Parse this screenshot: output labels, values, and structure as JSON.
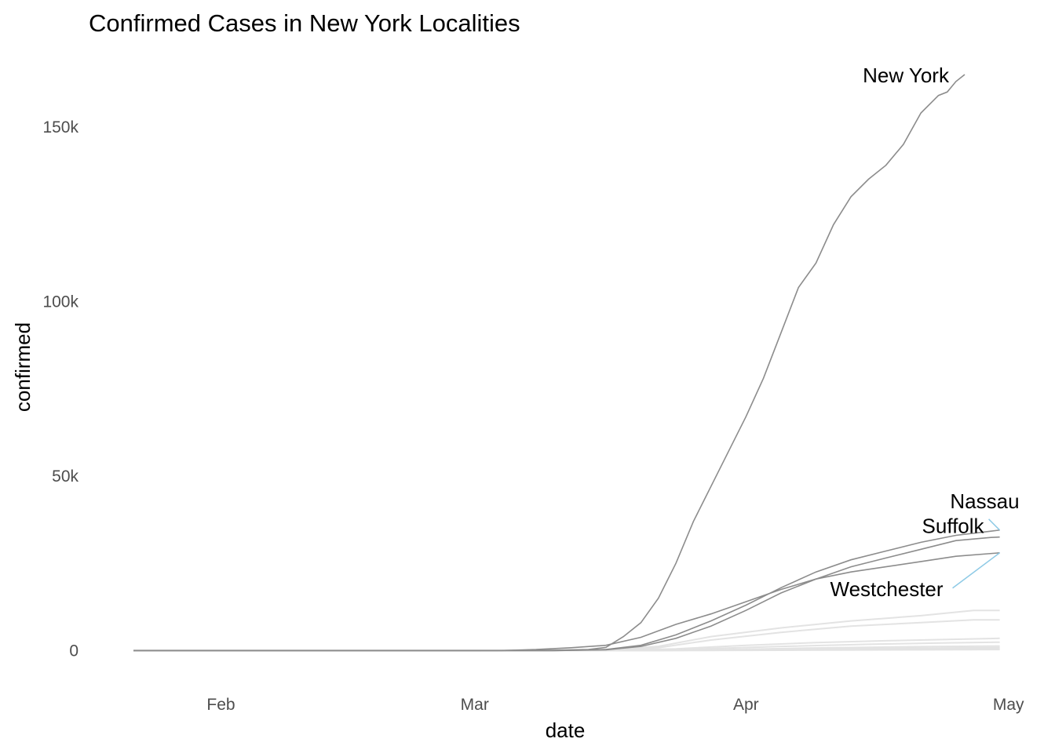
{
  "chart_data": {
    "type": "line",
    "title": "Confirmed Cases in New York Localities",
    "xlabel": "date",
    "ylabel": "confirmed",
    "grid": false,
    "legend": "none",
    "x_ticks": [
      "Feb",
      "Mar",
      "Apr",
      "May"
    ],
    "x_tick_dates": [
      "2020-02-01",
      "2020-03-01",
      "2020-04-01",
      "2020-05-01"
    ],
    "y_ticks": [
      "0",
      "50k",
      "100k",
      "150k"
    ],
    "y_tick_values": [
      0,
      50000,
      100000,
      150000
    ],
    "xlim": [
      "2020-01-22",
      "2020-05-03"
    ],
    "ylim": [
      -8000,
      165000
    ],
    "colors": {
      "highlight_line": "#8c8c8c",
      "minor_line": "#e3e3e3",
      "label_leader": "#8ecae6",
      "tick_text": "#4d4d4d"
    },
    "series": [
      {
        "name": "New York",
        "points": [
          [
            "2020-01-22",
            0
          ],
          [
            "2020-03-01",
            0
          ],
          [
            "2020-03-10",
            100
          ],
          [
            "2020-03-14",
            300
          ],
          [
            "2020-03-16",
            900
          ],
          [
            "2020-03-18",
            4000
          ],
          [
            "2020-03-20",
            8000
          ],
          [
            "2020-03-22",
            15000
          ],
          [
            "2020-03-24",
            25000
          ],
          [
            "2020-03-26",
            37000
          ],
          [
            "2020-03-28",
            47000
          ],
          [
            "2020-03-30",
            57000
          ],
          [
            "2020-04-01",
            67000
          ],
          [
            "2020-04-03",
            78000
          ],
          [
            "2020-04-05",
            91000
          ],
          [
            "2020-04-07",
            104000
          ],
          [
            "2020-04-09",
            111000
          ],
          [
            "2020-04-11",
            122000
          ],
          [
            "2020-04-13",
            130000
          ],
          [
            "2020-04-15",
            135000
          ],
          [
            "2020-04-17",
            139000
          ],
          [
            "2020-04-19",
            145000
          ],
          [
            "2020-04-21",
            154000
          ],
          [
            "2020-04-23",
            159000
          ],
          [
            "2020-04-24",
            160000
          ],
          [
            "2020-04-25",
            163000
          ],
          [
            "2020-04-26",
            165000
          ]
        ]
      },
      {
        "name": "Nassau",
        "points": [
          [
            "2020-01-22",
            0
          ],
          [
            "2020-03-10",
            0
          ],
          [
            "2020-03-16",
            300
          ],
          [
            "2020-03-20",
            1500
          ],
          [
            "2020-03-24",
            4500
          ],
          [
            "2020-03-28",
            8500
          ],
          [
            "2020-04-01",
            13000
          ],
          [
            "2020-04-05",
            18000
          ],
          [
            "2020-04-09",
            22500
          ],
          [
            "2020-04-13",
            26000
          ],
          [
            "2020-04-17",
            28500
          ],
          [
            "2020-04-21",
            31000
          ],
          [
            "2020-04-25",
            33000
          ],
          [
            "2020-04-29",
            34200
          ],
          [
            "2020-04-30",
            34500
          ]
        ]
      },
      {
        "name": "Suffolk",
        "points": [
          [
            "2020-01-22",
            0
          ],
          [
            "2020-03-10",
            0
          ],
          [
            "2020-03-16",
            200
          ],
          [
            "2020-03-20",
            1200
          ],
          [
            "2020-03-24",
            3500
          ],
          [
            "2020-03-28",
            7000
          ],
          [
            "2020-04-01",
            11500
          ],
          [
            "2020-04-05",
            16500
          ],
          [
            "2020-04-09",
            20500
          ],
          [
            "2020-04-13",
            24000
          ],
          [
            "2020-04-17",
            26500
          ],
          [
            "2020-04-21",
            29000
          ],
          [
            "2020-04-25",
            31500
          ],
          [
            "2020-04-29",
            32400
          ],
          [
            "2020-04-30",
            32500
          ]
        ]
      },
      {
        "name": "Westchester",
        "points": [
          [
            "2020-01-22",
            0
          ],
          [
            "2020-03-04",
            0
          ],
          [
            "2020-03-08",
            300
          ],
          [
            "2020-03-12",
            800
          ],
          [
            "2020-03-16",
            1500
          ],
          [
            "2020-03-20",
            3800
          ],
          [
            "2020-03-24",
            7500
          ],
          [
            "2020-03-28",
            10500
          ],
          [
            "2020-04-01",
            14000
          ],
          [
            "2020-04-05",
            17500
          ],
          [
            "2020-04-09",
            20500
          ],
          [
            "2020-04-13",
            22500
          ],
          [
            "2020-04-17",
            24000
          ],
          [
            "2020-04-21",
            25500
          ],
          [
            "2020-04-25",
            27000
          ],
          [
            "2020-04-30",
            28000
          ]
        ]
      }
    ],
    "minor_series": [
      [
        [
          "2020-01-22",
          0
        ],
        [
          "2020-03-14",
          0
        ],
        [
          "2020-03-22",
          1200
        ],
        [
          "2020-03-28",
          4000
        ],
        [
          "2020-04-05",
          6500
        ],
        [
          "2020-04-13",
          8500
        ],
        [
          "2020-04-21",
          10000
        ],
        [
          "2020-04-27",
          11500
        ],
        [
          "2020-04-30",
          11500
        ]
      ],
      [
        [
          "2020-01-22",
          0
        ],
        [
          "2020-03-14",
          0
        ],
        [
          "2020-03-22",
          800
        ],
        [
          "2020-03-28",
          3000
        ],
        [
          "2020-04-05",
          5200
        ],
        [
          "2020-04-13",
          7000
        ],
        [
          "2020-04-21",
          8000
        ],
        [
          "2020-04-27",
          8800
        ],
        [
          "2020-04-30",
          8800
        ]
      ],
      [
        [
          "2020-01-22",
          0
        ],
        [
          "2020-03-16",
          0
        ],
        [
          "2020-03-24",
          500
        ],
        [
          "2020-04-01",
          1500
        ],
        [
          "2020-04-09",
          2300
        ],
        [
          "2020-04-17",
          2800
        ],
        [
          "2020-04-24",
          3200
        ],
        [
          "2020-04-30",
          3500
        ]
      ],
      [
        [
          "2020-01-22",
          0
        ],
        [
          "2020-03-16",
          0
        ],
        [
          "2020-03-26",
          400
        ],
        [
          "2020-04-05",
          1200
        ],
        [
          "2020-04-15",
          1800
        ],
        [
          "2020-04-24",
          2200
        ],
        [
          "2020-04-30",
          2400
        ]
      ],
      [
        [
          "2020-01-22",
          0
        ],
        [
          "2020-03-18",
          0
        ],
        [
          "2020-03-28",
          200
        ],
        [
          "2020-04-08",
          700
        ],
        [
          "2020-04-20",
          1100
        ],
        [
          "2020-04-30",
          1300
        ]
      ],
      [
        [
          "2020-01-22",
          0
        ],
        [
          "2020-03-18",
          0
        ],
        [
          "2020-03-30",
          150
        ],
        [
          "2020-04-10",
          450
        ],
        [
          "2020-04-22",
          700
        ],
        [
          "2020-04-30",
          850
        ]
      ],
      [
        [
          "2020-01-22",
          0
        ],
        [
          "2020-03-20",
          0
        ],
        [
          "2020-04-02",
          100
        ],
        [
          "2020-04-15",
          300
        ],
        [
          "2020-04-30",
          500
        ]
      ],
      [
        [
          "2020-01-22",
          0
        ],
        [
          "2020-03-20",
          0
        ],
        [
          "2020-04-05",
          80
        ],
        [
          "2020-04-18",
          200
        ],
        [
          "2020-04-30",
          300
        ]
      ]
    ]
  }
}
